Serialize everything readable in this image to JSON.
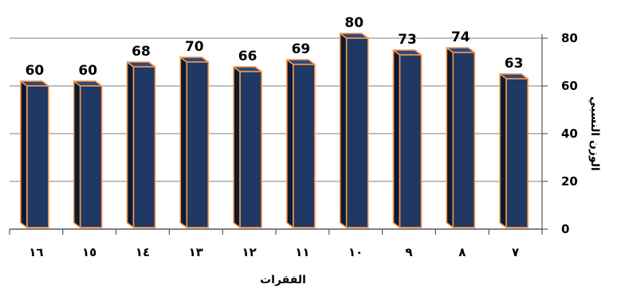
{
  "chart_data": {
    "type": "bar",
    "categories": [
      "١٦",
      "١٥",
      "١٤",
      "١٣",
      "١٢",
      "١١",
      "١٠",
      "٩",
      "٨",
      "٧"
    ],
    "values": [
      60,
      60,
      68,
      70,
      66,
      69,
      80,
      73,
      74,
      63
    ],
    "xlabel": "الفقرات",
    "ylabel": "الوزن النسبي",
    "ylim": [
      0,
      80
    ],
    "yticks": [
      0,
      20,
      40,
      60,
      80
    ],
    "y_axis_side": "right",
    "grid": true,
    "bar_style": "3d",
    "colors": {
      "bar_front": "#1f3864",
      "bar_side": "#0a1a33",
      "bar_top": "#2b4a80",
      "bar_edge": "#f79646",
      "grid": "#7f7f7f",
      "axis": "#595959"
    }
  }
}
